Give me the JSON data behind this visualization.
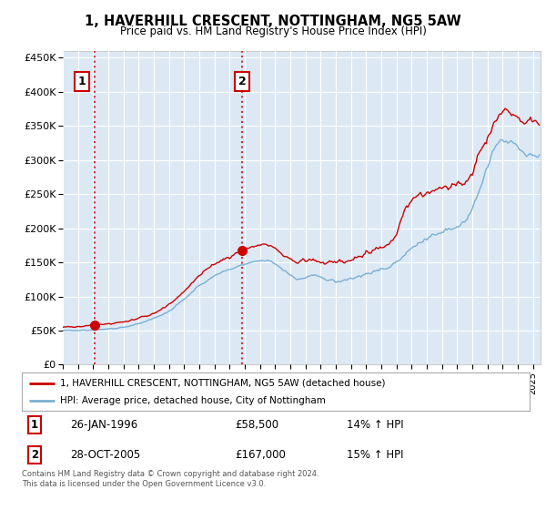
{
  "title": "1, HAVERHILL CRESCENT, NOTTINGHAM, NG5 5AW",
  "subtitle": "Price paid vs. HM Land Registry's House Price Index (HPI)",
  "legend_line1": "1, HAVERHILL CRESCENT, NOTTINGHAM, NG5 5AW (detached house)",
  "legend_line2": "HPI: Average price, detached house, City of Nottingham",
  "annotation1_label": "1",
  "annotation1_date": "26-JAN-1996",
  "annotation1_price": "£58,500",
  "annotation1_hpi": "14% ↑ HPI",
  "annotation2_label": "2",
  "annotation2_date": "28-OCT-2005",
  "annotation2_price": "£167,000",
  "annotation2_hpi": "15% ↑ HPI",
  "footer": "Contains HM Land Registry data © Crown copyright and database right 2024.\nThis data is licensed under the Open Government Licence v3.0.",
  "sale1_year": 1996.07,
  "sale1_price": 58500,
  "sale2_year": 2005.82,
  "sale2_price": 167000,
  "plot_bg_color": "#dce9f5",
  "line_color_red": "#cc0000",
  "line_color_blue": "#7ab0d4",
  "grid_color": "#ffffff",
  "ylim_max": 460000,
  "ylim_min": 0,
  "xlim_min": 1994,
  "xlim_max": 2025.5
}
